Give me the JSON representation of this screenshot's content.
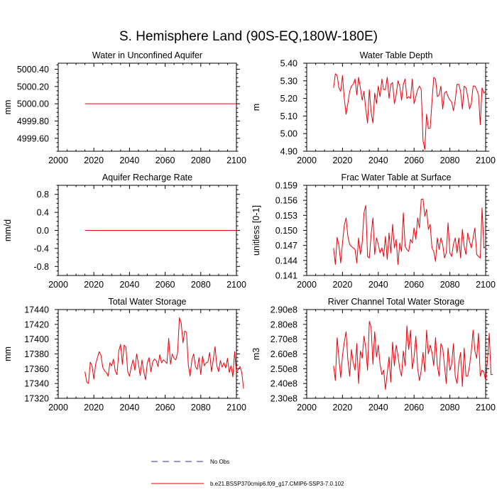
{
  "figure": {
    "title": "S. Hemisphere Land (90S-EQ,180W-180E)"
  },
  "colors": {
    "series": "#e8000b",
    "obs": "#3a2b9e",
    "axis": "#000000"
  },
  "legend": {
    "obs_label": "No Obs",
    "case_label": "b.e21.BSSP370cmip6.f09_g17.CMIP6-SSP3-7.0.102"
  },
  "chart_data": [
    {
      "id": "water-in-unconfined-aquifer",
      "type": "line",
      "title": "Water in Unconfined Aquifer",
      "xlabel": "",
      "ylabel": "mm",
      "xlim": [
        2000,
        2100
      ],
      "ylim": [
        4999.45,
        5000.47
      ],
      "xticks": [
        2000,
        2020,
        2040,
        2060,
        2080,
        2100
      ],
      "yticks": [
        4999.6,
        4999.8,
        5000.0,
        5000.2,
        5000.4
      ],
      "ytick_labels": [
        "4999.60",
        "4999.80",
        "5000.00",
        "5000.20",
        "5000.40"
      ],
      "x_start": 2015,
      "values": [
        5000,
        5000,
        5000,
        5000,
        5000,
        5000,
        5000,
        5000,
        5000,
        5000,
        5000,
        5000,
        5000,
        5000,
        5000,
        5000,
        5000,
        5000,
        5000,
        5000,
        5000,
        5000,
        5000,
        5000,
        5000,
        5000,
        5000,
        5000,
        5000,
        5000,
        5000,
        5000,
        5000,
        5000,
        5000,
        5000,
        5000,
        5000,
        5000,
        5000,
        5000,
        5000,
        5000,
        5000,
        5000,
        5000,
        5000,
        5000,
        5000,
        5000,
        5000,
        5000,
        5000,
        5000,
        5000,
        5000,
        5000,
        5000,
        5000,
        5000,
        5000,
        5000,
        5000,
        5000,
        5000,
        5000,
        5000,
        5000,
        5000,
        5000,
        5000,
        5000,
        5000,
        5000,
        5000,
        5000,
        5000,
        5000,
        5000,
        5000,
        5000,
        5000,
        5000,
        5000,
        5000,
        5000
      ]
    },
    {
      "id": "water-table-depth",
      "type": "line",
      "title": "Water Table Depth",
      "xlabel": "",
      "ylabel": "m",
      "xlim": [
        2000,
        2100
      ],
      "ylim": [
        4.9,
        5.4
      ],
      "xticks": [
        2000,
        2020,
        2040,
        2060,
        2080,
        2100
      ],
      "yticks": [
        4.9,
        5.0,
        5.1,
        5.2,
        5.3,
        5.4
      ],
      "ytick_labels": [
        "4.90",
        "5.00",
        "5.10",
        "5.20",
        "5.30",
        "5.40"
      ],
      "x_start": 2015,
      "values": [
        5.26,
        5.34,
        5.33,
        5.26,
        5.24,
        5.33,
        5.2,
        5.11,
        5.17,
        5.24,
        5.27,
        5.28,
        5.31,
        5.22,
        5.32,
        5.26,
        5.19,
        5.24,
        5.14,
        5.06,
        5.25,
        5.12,
        5.06,
        5.23,
        5.17,
        5.27,
        5.21,
        5.31,
        5.25,
        5.25,
        5.32,
        5.2,
        5.28,
        5.29,
        5.17,
        5.22,
        5.3,
        5.27,
        5.19,
        5.28,
        5.31,
        5.2,
        5.21,
        5.2,
        5.31,
        5.17,
        5.21,
        5.25,
        5.27,
        5.25,
        4.96,
        4.91,
        5.11,
        5.03,
        5.03,
        5.18,
        5.32,
        5.31,
        5.21,
        5.22,
        5.27,
        5.14,
        5.23,
        5.24,
        5.21,
        5.19,
        5.18,
        5.13,
        5.19,
        5.28,
        5.28,
        5.24,
        5.14,
        5.27,
        5.26,
        5.21,
        5.14,
        5.17,
        5.27,
        5.27,
        5.25,
        5.22,
        5.05,
        5.26,
        5.23,
        5.24
      ]
    },
    {
      "id": "aquifer-recharge-rate",
      "type": "line",
      "title": "Aquifer Recharge Rate",
      "xlabel": "",
      "ylabel": "mm/d",
      "xlim": [
        2000,
        2100
      ],
      "ylim": [
        -1.0,
        1.0
      ],
      "xticks": [
        2000,
        2020,
        2040,
        2060,
        2080,
        2100
      ],
      "yticks": [
        -0.8,
        -0.4,
        0.0,
        0.4,
        0.8
      ],
      "ytick_labels": [
        "-0.8",
        "-0.4",
        "0.0",
        "0.4",
        "0.8"
      ],
      "x_start": 2015,
      "values": [
        0,
        0,
        0,
        0,
        0,
        0,
        0,
        0,
        0,
        0,
        0,
        0,
        0,
        0,
        0,
        0,
        0,
        0,
        0,
        0,
        0,
        0,
        0,
        0,
        0,
        0,
        0,
        0,
        0,
        0,
        0,
        0,
        0,
        0,
        0,
        0,
        0,
        0,
        0,
        0,
        0,
        0,
        0,
        0,
        0,
        0,
        0,
        0,
        0,
        0,
        0,
        0,
        0,
        0,
        0,
        0,
        0,
        0,
        0,
        0,
        0,
        0,
        0,
        0,
        0,
        0,
        0,
        0,
        0,
        0,
        0,
        0,
        0,
        0,
        0,
        0,
        0,
        0,
        0,
        0,
        0,
        0,
        0,
        0,
        0,
        0
      ]
    },
    {
      "id": "frac-water-table-at-surface",
      "type": "line",
      "title": "Frac Water Table at Surface",
      "xlabel": "",
      "ylabel": "unitless [0-1]",
      "xlim": [
        2000,
        2100
      ],
      "ylim": [
        0.141,
        0.159
      ],
      "xticks": [
        2000,
        2020,
        2040,
        2060,
        2080,
        2100
      ],
      "yticks": [
        0.141,
        0.144,
        0.147,
        0.15,
        0.153,
        0.156,
        0.159
      ],
      "ytick_labels": [
        "0.141",
        "0.144",
        "0.147",
        "0.150",
        "0.153",
        "0.156",
        "0.159"
      ],
      "x_start": 2015,
      "values": [
        0.1465,
        0.1432,
        0.1486,
        0.147,
        0.1435,
        0.1475,
        0.151,
        0.1525,
        0.1488,
        0.1472,
        0.1468,
        0.1465,
        0.1462,
        0.1435,
        0.1485,
        0.1452,
        0.1475,
        0.1535,
        0.155,
        0.1448,
        0.1445,
        0.1492,
        0.1525,
        0.1452,
        0.1485,
        0.1472,
        0.1455,
        0.1465,
        0.1448,
        0.1488,
        0.1442,
        0.1495,
        0.1455,
        0.1512,
        0.1465,
        0.1482,
        0.1432,
        0.1475,
        0.1458,
        0.1535,
        0.1468,
        0.1462,
        0.1458,
        0.1482,
        0.1475,
        0.1505,
        0.1482,
        0.1525,
        0.1505,
        0.1562,
        0.1563,
        0.1528,
        0.1542,
        0.1502,
        0.1512,
        0.1465,
        0.1458,
        0.1438,
        0.1485,
        0.1462,
        0.1485,
        0.1472,
        0.1445,
        0.1455,
        0.1515,
        0.1455,
        0.1448,
        0.1472,
        0.1485,
        0.1455,
        0.1485,
        0.1445,
        0.1502,
        0.1468,
        0.1452,
        0.1495,
        0.1478,
        0.1465,
        0.1485,
        0.1505,
        0.1452,
        0.1448,
        0.1445,
        0.1545,
        0.1465,
        0.1468
      ]
    },
    {
      "id": "total-water-storage",
      "type": "line",
      "title": "Total Water Storage",
      "xlabel": "",
      "ylabel": "mm",
      "xlim": [
        2000,
        2100
      ],
      "ylim": [
        17320,
        17440
      ],
      "xticks": [
        2000,
        2020,
        2040,
        2060,
        2080,
        2100
      ],
      "yticks": [
        17320,
        17340,
        17360,
        17380,
        17400,
        17420,
        17440
      ],
      "ytick_labels": [
        "17320",
        "17340",
        "17360",
        "17380",
        "17400",
        "17420",
        "17440"
      ],
      "x_start": 2015,
      "values": [
        17356,
        17342,
        17340,
        17369,
        17364,
        17346,
        17366,
        17375,
        17383,
        17378,
        17362,
        17357,
        17355,
        17350,
        17368,
        17364,
        17373,
        17357,
        17352,
        17384,
        17393,
        17366,
        17392,
        17389,
        17356,
        17350,
        17363,
        17372,
        17358,
        17380,
        17367,
        17351,
        17372,
        17356,
        17345,
        17368,
        17375,
        17356,
        17369,
        17373,
        17371,
        17363,
        17379,
        17368,
        17372,
        17370,
        17367,
        17401,
        17366,
        17380,
        17374,
        17372,
        17382,
        17429,
        17422,
        17395,
        17411,
        17409,
        17365,
        17350,
        17372,
        17380,
        17363,
        17359,
        17375,
        17352,
        17377,
        17364,
        17368,
        17369,
        17382,
        17356,
        17372,
        17390,
        17364,
        17356,
        17371,
        17362,
        17368,
        17361,
        17374,
        17355,
        17364,
        17349,
        17383,
        17355,
        17359,
        17363,
        17355,
        17333
      ]
    },
    {
      "id": "river-channel-total-water-storage",
      "type": "line",
      "title": "River Channel Total Water Storage",
      "xlabel": "",
      "ylabel": "m3",
      "xlim": [
        2000,
        2100
      ],
      "ylim": [
        230000000,
        290000000
      ],
      "xticks": [
        2000,
        2020,
        2040,
        2060,
        2080,
        2100
      ],
      "yticks": [
        230000000,
        240000000,
        250000000,
        260000000,
        270000000,
        280000000,
        290000000
      ],
      "ytick_labels": [
        "2.30e8",
        "2.40e8",
        "2.50e8",
        "2.60e8",
        "2.70e8",
        "2.80e8",
        "2.90e8"
      ],
      "x_start": 2015,
      "values": [
        252000000,
        242000000,
        271000000,
        257000000,
        244000000,
        259000000,
        268000000,
        275000000,
        256000000,
        245000000,
        263000000,
        254000000,
        249000000,
        267000000,
        240000000,
        262000000,
        257000000,
        272000000,
        264000000,
        249000000,
        282000000,
        278000000,
        253000000,
        275000000,
        258000000,
        266000000,
        253000000,
        246000000,
        249000000,
        236000000,
        247000000,
        258000000,
        241000000,
        268000000,
        252000000,
        266000000,
        259000000,
        250000000,
        245000000,
        262000000,
        252000000,
        279000000,
        263000000,
        276000000,
        250000000,
        258000000,
        272000000,
        250000000,
        242000000,
        249000000,
        261000000,
        248000000,
        276000000,
        260000000,
        266000000,
        261000000,
        252000000,
        271000000,
        252000000,
        245000000,
        267000000,
        264000000,
        252000000,
        240000000,
        264000000,
        249000000,
        253000000,
        267000000,
        245000000,
        240000000,
        254000000,
        261000000,
        238000000,
        264000000,
        245000000,
        245000000,
        252000000,
        262000000,
        276000000,
        262000000,
        257000000,
        274000000,
        245000000,
        249000000,
        248000000,
        242000000,
        255000000,
        274000000,
        246000000,
        246000000
      ]
    }
  ]
}
